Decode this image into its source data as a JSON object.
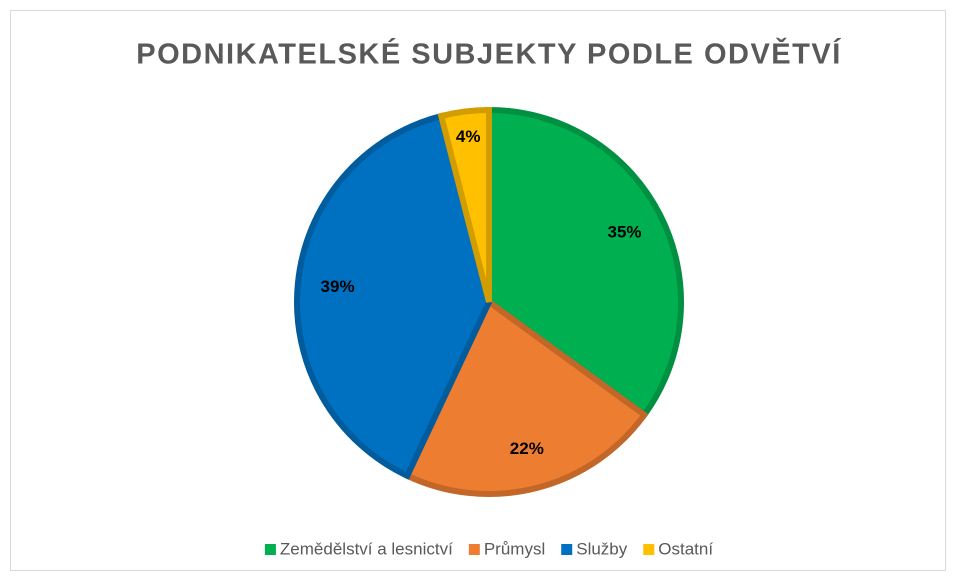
{
  "chart_data": {
    "type": "pie",
    "title": "PODNIKATELSKÉ SUBJEKTY PODLE ODVĚTVÍ",
    "categories": [
      "Zemědělství a lesnictví",
      "Průmysl",
      "Služby",
      "Ostatní"
    ],
    "values": [
      35,
      22,
      39,
      4
    ],
    "value_labels": [
      "35%",
      "22%",
      "39%",
      "4%"
    ],
    "colors": [
      "#00b050",
      "#ed7d31",
      "#0070c0",
      "#ffc000"
    ],
    "legend": "bottom"
  }
}
